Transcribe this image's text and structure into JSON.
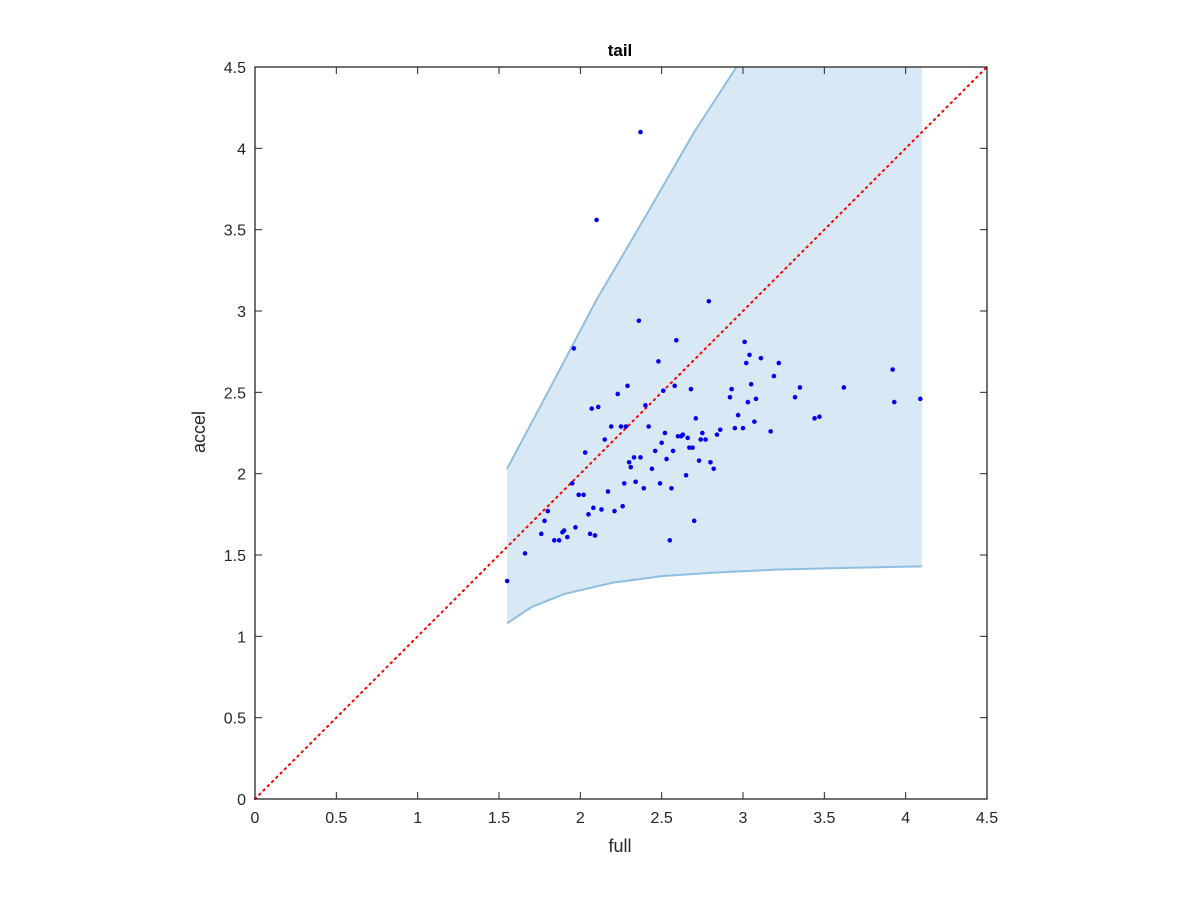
{
  "chart_data": {
    "type": "scatter",
    "title": "tail",
    "xlabel": "full",
    "ylabel": "accel",
    "xlim": [
      0,
      4.5
    ],
    "ylim": [
      0,
      4.5
    ],
    "xticks": [
      "0",
      "0.5",
      "1",
      "1.5",
      "2",
      "2.5",
      "3",
      "3.5",
      "4",
      "4.5"
    ],
    "yticks": [
      "0",
      "0.5",
      "1",
      "1.5",
      "2",
      "2.5",
      "3",
      "3.5",
      "4",
      "4.5"
    ],
    "grid": false,
    "reference_line": {
      "style": "dotted",
      "color": "#ff0000",
      "x": [
        0,
        4.5
      ],
      "y": [
        0,
        4.5
      ]
    },
    "band": {
      "color": "#d9e8f5",
      "edge_color": "#8fbfe0",
      "upper": [
        [
          1.55,
          2.03
        ],
        [
          1.8,
          2.5
        ],
        [
          2.1,
          3.07
        ],
        [
          2.4,
          3.58
        ],
        [
          2.7,
          4.1
        ],
        [
          2.96,
          4.5
        ],
        [
          4.1,
          4.5
        ]
      ],
      "lower": [
        [
          1.55,
          1.08
        ],
        [
          1.7,
          1.18
        ],
        [
          1.9,
          1.26
        ],
        [
          2.2,
          1.33
        ],
        [
          2.5,
          1.37
        ],
        [
          2.8,
          1.39
        ],
        [
          3.2,
          1.41
        ],
        [
          3.6,
          1.42
        ],
        [
          4.1,
          1.43
        ]
      ]
    },
    "series": [
      {
        "color": "#0000ee",
        "x": [
          1.55,
          1.66,
          1.76,
          1.78,
          1.8,
          1.84,
          1.87,
          1.89,
          1.9,
          1.92,
          1.95,
          1.97,
          1.99,
          2.02,
          2.03,
          2.05,
          2.06,
          2.07,
          2.08,
          2.09,
          2.11,
          2.13,
          2.15,
          2.17,
          2.19,
          2.21,
          2.23,
          2.25,
          2.26,
          2.27,
          2.28,
          2.29,
          2.3,
          2.31,
          2.33,
          2.34,
          2.36,
          2.37,
          2.39,
          2.4,
          2.42,
          2.44,
          2.46,
          2.48,
          2.49,
          2.5,
          2.51,
          2.52,
          2.53,
          2.55,
          2.56,
          2.57,
          2.58,
          2.59,
          2.6,
          2.62,
          2.63,
          2.65,
          2.66,
          2.67,
          2.68,
          2.69,
          2.7,
          2.71,
          2.73,
          2.74,
          2.75,
          2.77,
          2.79,
          2.8,
          2.82,
          2.84,
          2.86,
          2.92,
          2.93,
          2.95,
          2.97,
          3.0,
          3.01,
          3.02,
          3.03,
          3.04,
          3.05,
          3.07,
          3.08,
          3.11,
          3.17,
          3.19,
          3.22,
          3.32,
          3.35,
          3.44,
          3.47,
          3.62,
          3.92,
          3.93,
          4.09,
          1.96,
          2.1,
          2.37
        ],
        "y": [
          1.34,
          1.51,
          1.63,
          1.71,
          1.77,
          1.59,
          1.59,
          1.64,
          1.65,
          1.61,
          1.94,
          1.67,
          1.87,
          1.87,
          2.13,
          1.75,
          1.63,
          2.4,
          1.79,
          1.62,
          2.41,
          1.78,
          2.21,
          1.89,
          2.29,
          1.77,
          2.49,
          2.29,
          1.8,
          1.94,
          2.29,
          2.54,
          2.07,
          2.04,
          2.1,
          1.95,
          2.94,
          2.1,
          1.91,
          2.42,
          2.29,
          2.03,
          2.14,
          2.69,
          1.94,
          2.19,
          2.51,
          2.25,
          2.09,
          1.59,
          1.91,
          2.14,
          2.54,
          2.82,
          2.23,
          2.23,
          2.24,
          1.99,
          2.22,
          2.16,
          2.52,
          2.16,
          1.71,
          2.34,
          2.08,
          2.21,
          2.25,
          2.21,
          3.06,
          2.07,
          2.03,
          2.24,
          2.27,
          2.47,
          2.52,
          2.28,
          2.36,
          2.28,
          2.81,
          2.68,
          2.44,
          2.73,
          2.55,
          2.32,
          2.46,
          2.71,
          2.26,
          2.6,
          2.68,
          2.47,
          2.53,
          2.34,
          2.35,
          2.53,
          2.64,
          2.44,
          2.46,
          2.77,
          3.56,
          4.1
        ]
      }
    ]
  }
}
